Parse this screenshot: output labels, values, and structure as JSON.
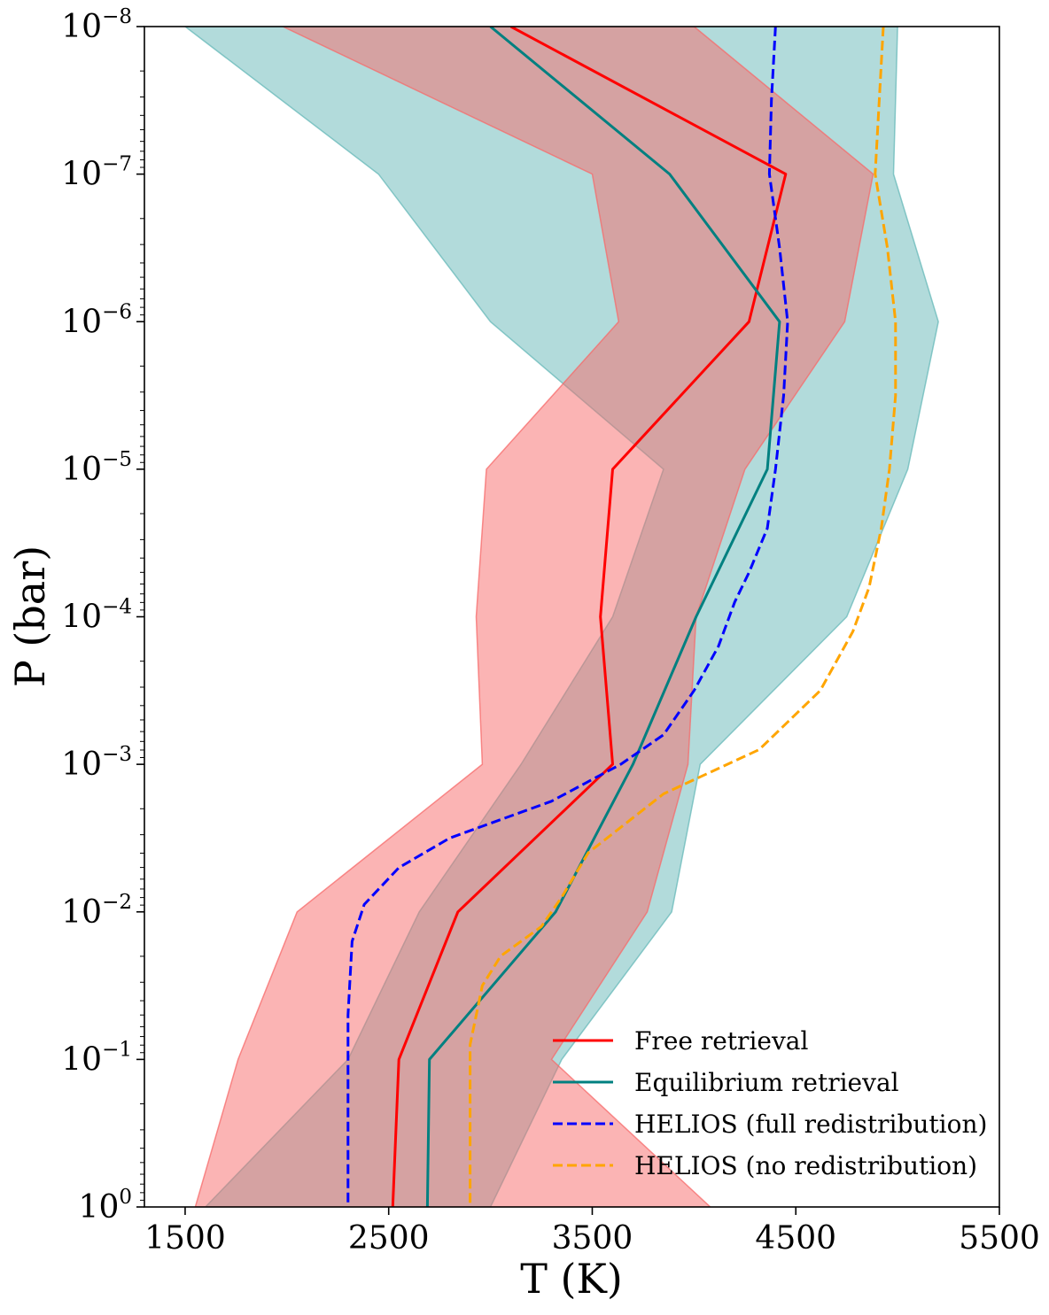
{
  "chart_data": {
    "type": "line",
    "title": "",
    "xlabel": "T (K)",
    "ylabel": "P (bar)",
    "xlim": [
      1300,
      5500
    ],
    "ylim_log10": [
      0,
      -8
    ],
    "y_scale": "log",
    "y_inverted": true,
    "grid": false,
    "legend_position": "bottom-right",
    "x_ticks": [
      {
        "value": 1500,
        "label": "1500"
      },
      {
        "value": 2500,
        "label": "2500"
      },
      {
        "value": 3500,
        "label": "3500"
      },
      {
        "value": 4500,
        "label": "4500"
      },
      {
        "value": 5500,
        "label": "5500"
      }
    ],
    "y_ticks": [
      {
        "exp": -8,
        "base": "10",
        "sup": "−8"
      },
      {
        "exp": -7,
        "base": "10",
        "sup": "−7"
      },
      {
        "exp": -6,
        "base": "10",
        "sup": "−6"
      },
      {
        "exp": -5,
        "base": "10",
        "sup": "−5"
      },
      {
        "exp": -4,
        "base": "10",
        "sup": "−4"
      },
      {
        "exp": -3,
        "base": "10",
        "sup": "−3"
      },
      {
        "exp": -2,
        "base": "10",
        "sup": "−2"
      },
      {
        "exp": -1,
        "base": "10",
        "sup": "−1"
      },
      {
        "exp": 0,
        "base": "10",
        "sup": "0"
      }
    ],
    "bands": [
      {
        "name": "Equilibrium retrieval uncertainty",
        "color": "#66b8b8",
        "opacity": 0.5,
        "upper": [
          [
            5000,
            -8
          ],
          [
            4980,
            -7
          ],
          [
            5200,
            -6
          ],
          [
            5050,
            -5
          ],
          [
            4750,
            -4
          ],
          [
            4030,
            -3
          ],
          [
            3890,
            -2
          ],
          [
            3350,
            -1
          ],
          [
            3000,
            0
          ]
        ],
        "lower": [
          [
            1500,
            -8
          ],
          [
            2450,
            -7
          ],
          [
            3000,
            -6
          ],
          [
            3850,
            -5
          ],
          [
            3600,
            -4
          ],
          [
            3150,
            -3
          ],
          [
            2650,
            -2
          ],
          [
            2300,
            -1
          ],
          [
            1600,
            0
          ]
        ]
      },
      {
        "name": "Free retrieval uncertainty",
        "color": "#f76a6a",
        "opacity": 0.5,
        "upper": [
          [
            4000,
            -8
          ],
          [
            4880,
            -7
          ],
          [
            4740,
            -6
          ],
          [
            4250,
            -5
          ],
          [
            4010,
            -4
          ],
          [
            3970,
            -3
          ],
          [
            3770,
            -2
          ],
          [
            3300,
            -1
          ],
          [
            4080,
            0
          ]
        ],
        "lower": [
          [
            1980,
            -8
          ],
          [
            3500,
            -7
          ],
          [
            3630,
            -6
          ],
          [
            2980,
            -5
          ],
          [
            2930,
            -4
          ],
          [
            2960,
            -3
          ],
          [
            2050,
            -2
          ],
          [
            1760,
            -1
          ],
          [
            1550,
            0
          ]
        ]
      }
    ],
    "series": [
      {
        "name": "Free retrieval",
        "color": "#ff0000",
        "dash": "solid",
        "points": [
          [
            3100,
            -8
          ],
          [
            4450,
            -7
          ],
          [
            4270,
            -6
          ],
          [
            3600,
            -5
          ],
          [
            3540,
            -4
          ],
          [
            3600,
            -3
          ],
          [
            2840,
            -2
          ],
          [
            2550,
            -1
          ],
          [
            2520,
            0
          ]
        ]
      },
      {
        "name": "Equilibrium retrieval",
        "color": "#008080",
        "dash": "solid",
        "points": [
          [
            3000,
            -8
          ],
          [
            3880,
            -7
          ],
          [
            4420,
            -6
          ],
          [
            4360,
            -5
          ],
          [
            4010,
            -4
          ],
          [
            3700,
            -3
          ],
          [
            3320,
            -2
          ],
          [
            2700,
            -1
          ],
          [
            2690,
            0
          ]
        ]
      },
      {
        "name": "HELIOS (full redistribution)",
        "color": "#0000ff",
        "dash": "dashed",
        "points": [
          [
            4400,
            -8
          ],
          [
            4380,
            -7.5
          ],
          [
            4370,
            -7
          ],
          [
            4420,
            -6.5
          ],
          [
            4460,
            -6
          ],
          [
            4440,
            -5.5
          ],
          [
            4400,
            -5
          ],
          [
            4360,
            -4.6
          ],
          [
            4270,
            -4.3
          ],
          [
            4200,
            -4.1
          ],
          [
            4120,
            -3.8
          ],
          [
            4000,
            -3.5
          ],
          [
            3850,
            -3.2
          ],
          [
            3640,
            -3
          ],
          [
            3300,
            -2.75
          ],
          [
            2800,
            -2.5
          ],
          [
            2550,
            -2.3
          ],
          [
            2380,
            -2.05
          ],
          [
            2320,
            -1.8
          ],
          [
            2300,
            -1.3
          ],
          [
            2300,
            -0.5
          ],
          [
            2300,
            0
          ]
        ]
      },
      {
        "name": "HELIOS (no redistribution)",
        "color": "#ffa500",
        "dash": "dashed",
        "points": [
          [
            4930,
            -8
          ],
          [
            4910,
            -7.5
          ],
          [
            4890,
            -7
          ],
          [
            4950,
            -6.5
          ],
          [
            4990,
            -6
          ],
          [
            4990,
            -5.5
          ],
          [
            4960,
            -5
          ],
          [
            4920,
            -4.6
          ],
          [
            4860,
            -4.2
          ],
          [
            4780,
            -3.9
          ],
          [
            4620,
            -3.5
          ],
          [
            4320,
            -3.1
          ],
          [
            3850,
            -2.8
          ],
          [
            3480,
            -2.4
          ],
          [
            3350,
            -2.1
          ],
          [
            3250,
            -1.9
          ],
          [
            3050,
            -1.7
          ],
          [
            2960,
            -1.5
          ],
          [
            2900,
            -1.1
          ],
          [
            2900,
            -0.5
          ],
          [
            2900,
            0
          ]
        ]
      }
    ]
  }
}
